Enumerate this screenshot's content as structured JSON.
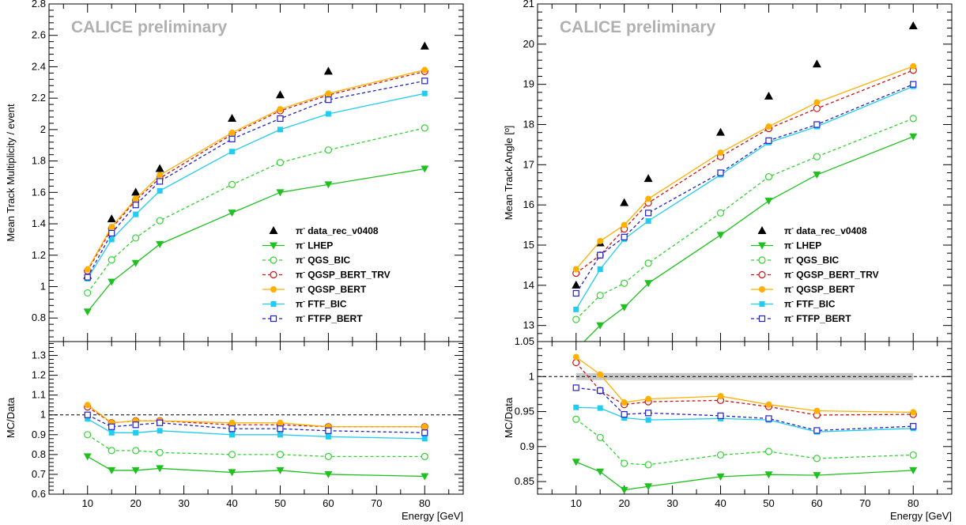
{
  "energies": [
    10,
    15,
    20,
    25,
    40,
    50,
    60,
    80
  ],
  "chart_data": [
    {
      "type": "line",
      "panel": "left-top",
      "annotation": "CALICE preliminary",
      "ylabel": "Mean Track Multiplicity / event",
      "xlim": [
        2,
        88
      ],
      "ylim": [
        0.65,
        2.8
      ],
      "yticks": [
        0.8,
        1,
        1.2,
        1.4,
        1.6,
        1.8,
        2,
        2.2,
        2.4,
        2.6,
        2.8
      ],
      "ytick_labels": [
        "0.8",
        "1",
        "1.2",
        "1.4",
        "1.6",
        "1.8",
        "2",
        "2.2",
        "2.4",
        "2.6",
        "2.8"
      ],
      "legend_position": "right",
      "series": [
        {
          "key": "data",
          "name": "π- data_rec_v0408",
          "legend": "data_rec_v0408",
          "color": "#000000",
          "marker": "triangle-up",
          "line": "none",
          "values": [
            1.07,
            1.43,
            1.6,
            1.75,
            2.07,
            2.22,
            2.37,
            2.53
          ]
        },
        {
          "key": "lhep",
          "name": "π- LHEP",
          "legend": "LHEP",
          "color": "#1fc11f",
          "marker": "triangle-down",
          "line": "solid",
          "values": [
            0.84,
            1.03,
            1.15,
            1.27,
            1.47,
            1.6,
            1.65,
            1.75
          ]
        },
        {
          "key": "qgs_bic",
          "name": "π- QGS_BIC",
          "legend": "QGS_BIC",
          "color": "#2fd42f",
          "marker": "circle-open",
          "line": "dashed",
          "values": [
            0.96,
            1.17,
            1.31,
            1.42,
            1.65,
            1.79,
            1.87,
            2.01
          ]
        },
        {
          "key": "qgsp_bert_trv",
          "name": "π- QGSP_BERT_TRV",
          "legend": "QGSP_BERT_TRV",
          "color": "#d01010",
          "marker": "circle-open",
          "line": "dashed",
          "values": [
            1.1,
            1.37,
            1.55,
            1.69,
            1.97,
            2.12,
            2.22,
            2.37
          ]
        },
        {
          "key": "qgsp_bert",
          "name": "π- QGSP_BERT",
          "legend": "QGSP_BERT",
          "color": "#ffb000",
          "marker": "circle-filled",
          "line": "solid",
          "values": [
            1.11,
            1.38,
            1.56,
            1.71,
            1.98,
            2.13,
            2.23,
            2.38
          ]
        },
        {
          "key": "ftf_bic",
          "name": "π- FTF_BIC",
          "legend": "FTF_BIC",
          "color": "#22ccee",
          "marker": "square-filled",
          "line": "solid",
          "values": [
            1.05,
            1.3,
            1.46,
            1.61,
            1.86,
            2.0,
            2.1,
            2.23
          ]
        },
        {
          "key": "ftfp_bert",
          "name": "π- FTFP_BERT",
          "legend": "FTFP_BERT",
          "color": "#2020cc",
          "marker": "square-open",
          "line": "dashed",
          "values": [
            1.06,
            1.34,
            1.52,
            1.67,
            1.94,
            2.07,
            2.19,
            2.31
          ]
        }
      ]
    },
    {
      "type": "line",
      "panel": "left-bottom",
      "ylabel": "MC/Data",
      "xlabel": "Energy [GeV]",
      "xlim": [
        2,
        88
      ],
      "ylim": [
        0.6,
        1.37
      ],
      "xticks": [
        10,
        20,
        30,
        40,
        50,
        60,
        70,
        80
      ],
      "xtick_labels": [
        "10",
        "20",
        "30",
        "40",
        "50",
        "60",
        "70",
        "80"
      ],
      "yticks": [
        0.6,
        0.7,
        0.8,
        0.9,
        1,
        1.1,
        1.2,
        1.3
      ],
      "ytick_labels": [
        "0.6",
        "0.7",
        "0.8",
        "0.9",
        "1",
        "1.1",
        "1.2",
        "1.3"
      ],
      "reference_line": 1,
      "series": [
        {
          "key": "lhep",
          "values": [
            0.79,
            0.72,
            0.72,
            0.73,
            0.71,
            0.72,
            0.7,
            0.69
          ]
        },
        {
          "key": "qgs_bic",
          "values": [
            0.9,
            0.82,
            0.82,
            0.81,
            0.8,
            0.8,
            0.79,
            0.79
          ]
        },
        {
          "key": "qgsp_bert_trv",
          "values": [
            1.04,
            0.96,
            0.97,
            0.97,
            0.95,
            0.95,
            0.94,
            0.94
          ]
        },
        {
          "key": "qgsp_bert",
          "values": [
            1.05,
            0.96,
            0.97,
            0.97,
            0.96,
            0.96,
            0.94,
            0.94
          ]
        },
        {
          "key": "ftf_bic",
          "values": [
            0.98,
            0.91,
            0.91,
            0.92,
            0.9,
            0.9,
            0.89,
            0.88
          ]
        },
        {
          "key": "ftfp_bert",
          "values": [
            1.0,
            0.94,
            0.95,
            0.96,
            0.93,
            0.93,
            0.92,
            0.91
          ]
        }
      ]
    },
    {
      "type": "line",
      "panel": "right-top",
      "annotation": "CALICE preliminary",
      "ylabel": "Mean Track Angle [º]",
      "xlim": [
        2,
        88
      ],
      "ylim": [
        12.6,
        21
      ],
      "yticks": [
        13,
        14,
        15,
        16,
        17,
        18,
        19,
        20,
        21
      ],
      "ytick_labels": [
        "13",
        "14",
        "15",
        "16",
        "17",
        "18",
        "19",
        "20",
        "21"
      ],
      "legend_position": "right",
      "series": [
        {
          "key": "data",
          "name": "π- data_rec_v0408",
          "legend": "data_rec_v0408",
          "values": [
            14.0,
            15.05,
            16.05,
            16.65,
            17.8,
            18.7,
            19.5,
            20.45
          ]
        },
        {
          "key": "lhep",
          "name": "π- LHEP",
          "legend": "LHEP",
          "values": [
            12.4,
            13.0,
            13.45,
            14.05,
            15.25,
            16.1,
            16.75,
            17.7
          ]
        },
        {
          "key": "qgs_bic",
          "name": "π- QGS_BIC",
          "legend": "QGS_BIC",
          "values": [
            13.15,
            13.75,
            14.05,
            14.55,
            15.8,
            16.7,
            17.2,
            18.15
          ]
        },
        {
          "key": "qgsp_bert_trv",
          "name": "π- QGSP_BERT_TRV",
          "legend": "QGSP_BERT_TRV",
          "values": [
            14.3,
            14.75,
            15.4,
            16.05,
            17.2,
            17.9,
            18.4,
            19.35
          ]
        },
        {
          "key": "qgsp_bert",
          "name": "π- QGSP_BERT",
          "legend": "QGSP_BERT",
          "values": [
            14.4,
            15.1,
            15.5,
            16.15,
            17.3,
            17.95,
            18.55,
            19.45
          ]
        },
        {
          "key": "ftf_bic",
          "name": "π- FTF_BIC",
          "legend": "FTF_BIC",
          "values": [
            13.4,
            14.4,
            15.15,
            15.6,
            16.75,
            17.55,
            17.95,
            18.95
          ]
        },
        {
          "key": "ftfp_bert",
          "name": "π- FTFP_BERT",
          "legend": "FTFP_BERT",
          "values": [
            13.8,
            14.75,
            15.2,
            15.8,
            16.8,
            17.6,
            18.0,
            19.0
          ]
        }
      ]
    },
    {
      "type": "line",
      "panel": "right-bottom",
      "ylabel": "MC/Data",
      "xlabel": "Energy [GeV]",
      "xlim": [
        2,
        88
      ],
      "ylim": [
        0.832,
        1.05
      ],
      "xticks": [
        10,
        20,
        30,
        40,
        50,
        60,
        70,
        80
      ],
      "xtick_labels": [
        "10",
        "20",
        "30",
        "40",
        "50",
        "60",
        "70",
        "80"
      ],
      "yticks": [
        0.85,
        0.9,
        0.95,
        1,
        1.05
      ],
      "ytick_labels": [
        "0.85",
        "0.9",
        "0.95",
        "1",
        "1.05"
      ],
      "reference_line": 1,
      "band": [
        0.995,
        1.005
      ],
      "series": [
        {
          "key": "lhep",
          "values": [
            0.878,
            0.864,
            0.838,
            0.843,
            0.857,
            0.86,
            0.859,
            0.866
          ]
        },
        {
          "key": "qgs_bic",
          "values": [
            0.939,
            0.913,
            0.876,
            0.874,
            0.888,
            0.893,
            0.883,
            0.888
          ]
        },
        {
          "key": "qgsp_bert_trv",
          "values": [
            1.02,
            0.98,
            0.96,
            0.964,
            0.966,
            0.957,
            0.945,
            0.946
          ]
        },
        {
          "key": "qgsp_bert",
          "values": [
            1.028,
            1.003,
            0.963,
            0.968,
            0.972,
            0.96,
            0.951,
            0.949
          ]
        },
        {
          "key": "ftf_bic",
          "values": [
            0.956,
            0.955,
            0.941,
            0.938,
            0.94,
            0.938,
            0.921,
            0.926
          ]
        },
        {
          "key": "ftfp_bert",
          "values": [
            0.984,
            0.98,
            0.946,
            0.948,
            0.944,
            0.94,
            0.923,
            0.929
          ]
        }
      ]
    }
  ]
}
